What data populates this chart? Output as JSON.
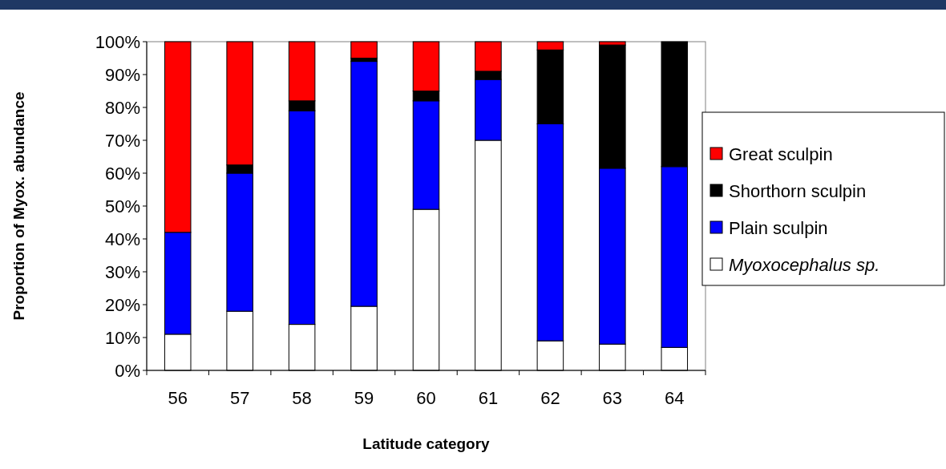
{
  "chart_data": {
    "type": "bar",
    "stacked": true,
    "xlabel": "Latitude category",
    "ylabel": "Proportion of Myox. abundance",
    "categories": [
      "56",
      "57",
      "58",
      "59",
      "60",
      "61",
      "62",
      "63",
      "64"
    ],
    "series": [
      {
        "name": "Myoxocephalus sp.",
        "color": "#ffffff",
        "values": [
          11,
          18,
          14,
          19.5,
          49,
          70,
          9,
          8,
          7
        ]
      },
      {
        "name": "Plain sculpin",
        "color": "#0000ff",
        "values": [
          31,
          42,
          65,
          74.5,
          33,
          18.5,
          66,
          53.5,
          55
        ]
      },
      {
        "name": "Shorthorn sculpin",
        "color": "#000000",
        "values": [
          0,
          2.5,
          3,
          1,
          3,
          2.5,
          22.5,
          37.5,
          38
        ]
      },
      {
        "name": "Great sculpin",
        "color": "#ff0000",
        "values": [
          58,
          37.5,
          18,
          5,
          15,
          9,
          2.5,
          1,
          0
        ]
      }
    ],
    "ylim": [
      0,
      100
    ],
    "yticks": [
      {
        "value": 0,
        "label": "0%"
      },
      {
        "value": 10,
        "label": "10%"
      },
      {
        "value": 20,
        "label": "20%"
      },
      {
        "value": 30,
        "label": "30%"
      },
      {
        "value": 40,
        "label": "40%"
      },
      {
        "value": 50,
        "label": "50%"
      },
      {
        "value": 60,
        "label": "60%"
      },
      {
        "value": 70,
        "label": "70%"
      },
      {
        "value": 80,
        "label": "80%"
      },
      {
        "value": 90,
        "label": "90%"
      },
      {
        "value": 100,
        "label": "100%"
      }
    ],
    "grid": false,
    "legend": "right"
  }
}
